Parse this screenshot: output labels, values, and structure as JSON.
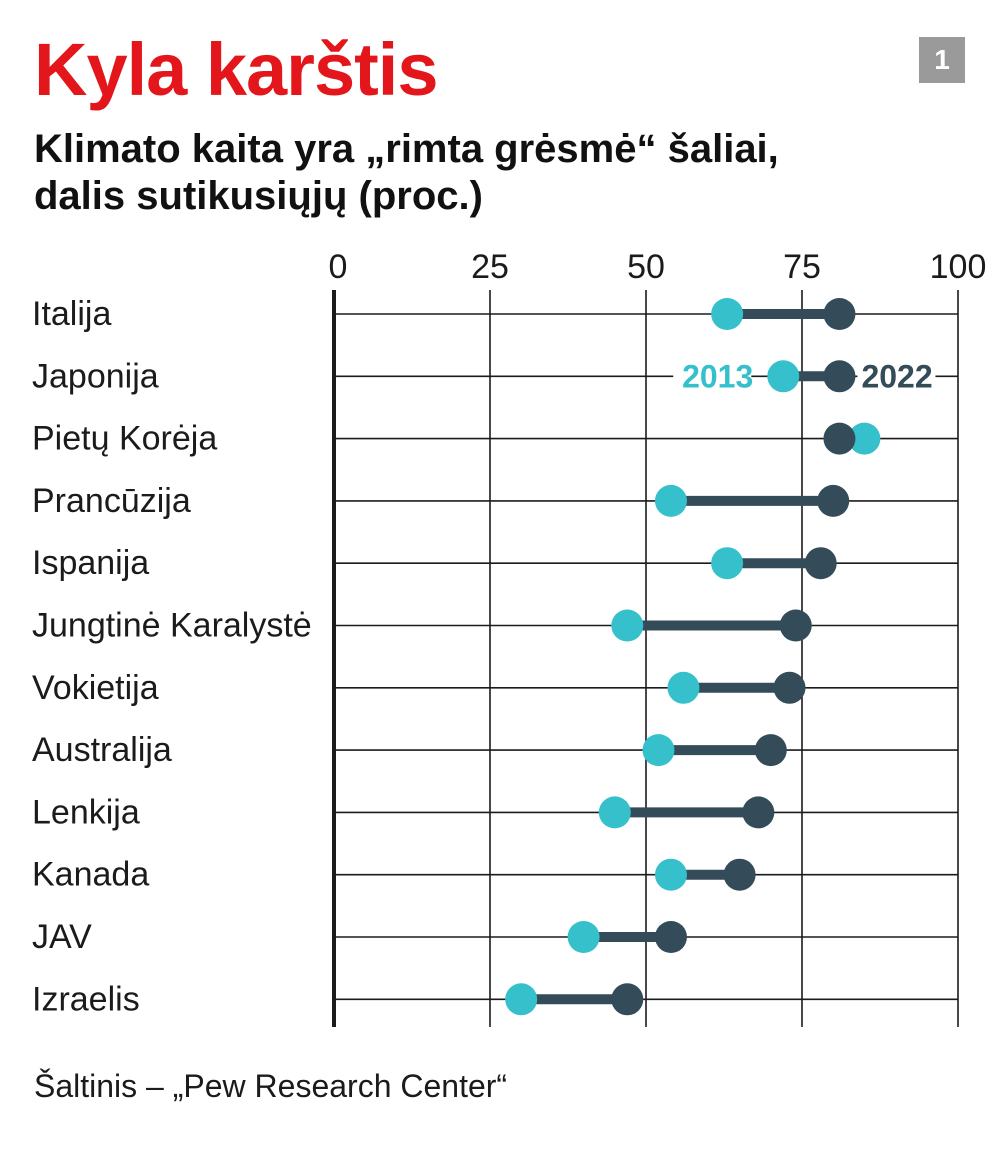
{
  "header": {
    "title": "Kyla karštis",
    "badge": "1",
    "subtitle_line1": "Klimato kaita yra „rimta grėsmė“ šaliai,",
    "subtitle_line2": "dalis sutikusiųjų (proc.)"
  },
  "source": "Šaltinis – „Pew Research Center“",
  "chart_data": {
    "type": "dumbbell",
    "xlim": [
      0,
      100
    ],
    "xticks": [
      0,
      25,
      50,
      75,
      100
    ],
    "grid": true,
    "categories": [
      "Italija",
      "Japonija",
      "Pietų Korėja",
      "Prancūzija",
      "Ispanija",
      "Jungtinė Karalystė",
      "Vokietija",
      "Australija",
      "Lenkija",
      "Kanada",
      "JAV",
      "Izraelis"
    ],
    "series": [
      {
        "name": "2013",
        "color": "#35c0cc",
        "values": [
          63,
          72,
          85,
          54,
          63,
          47,
          56,
          52,
          45,
          54,
          40,
          30
        ]
      },
      {
        "name": "2022",
        "color": "#344b5a",
        "values": [
          81,
          81,
          81,
          80,
          78,
          74,
          73,
          70,
          68,
          65,
          54,
          47
        ]
      }
    ],
    "legend_row": "Japonija"
  }
}
